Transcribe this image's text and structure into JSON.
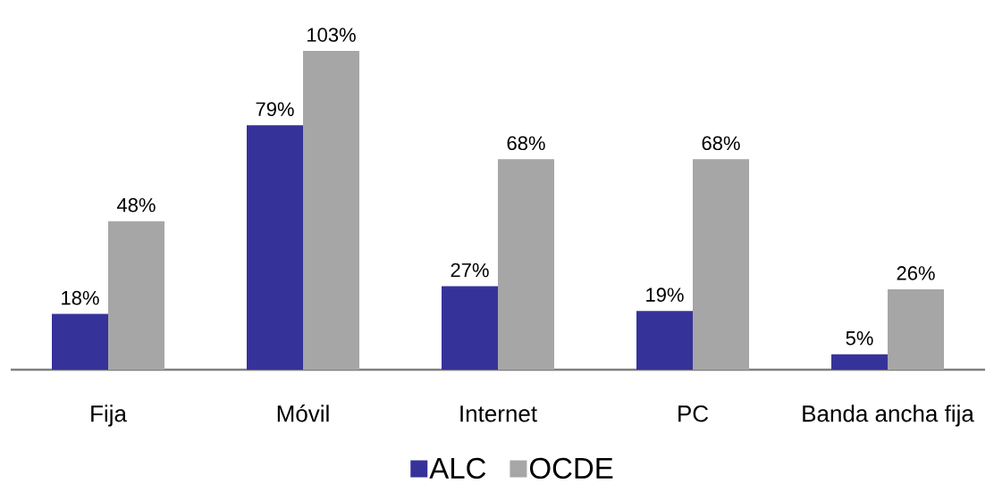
{
  "chart_data": {
    "type": "bar",
    "categories": [
      "Fija",
      "Móvil",
      "Internet",
      "PC",
      "Banda ancha fija"
    ],
    "series": [
      {
        "name": "ALC",
        "color": "#353399",
        "values": [
          18,
          79,
          27,
          19,
          5
        ],
        "value_labels": [
          "18%",
          "79%",
          "27%",
          "19%",
          "5%"
        ]
      },
      {
        "name": "OCDE",
        "color": "#a6a6a6",
        "values": [
          48,
          103,
          68,
          68,
          26
        ],
        "value_labels": [
          "48%",
          "103%",
          "68%",
          "68%",
          "26%"
        ]
      }
    ],
    "legend": "bottom"
  }
}
